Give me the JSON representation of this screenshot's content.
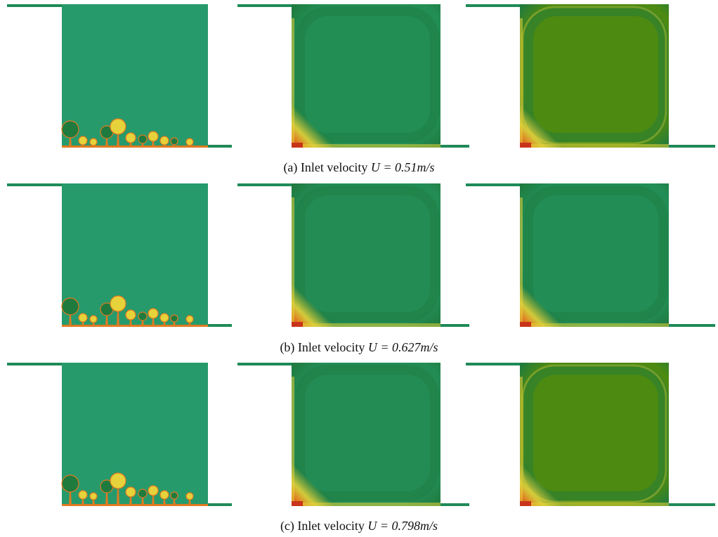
{
  "figure": {
    "rows": [
      {
        "id": "a",
        "caption_prefix": "(a) Inlet velocity ",
        "caption_math": "U = 0.51m/s",
        "panels": [
          {
            "state": "early",
            "tone": "#279a6c"
          },
          {
            "state": "developed",
            "tone": "#228e54"
          },
          {
            "state": "developed-strong",
            "tone": "#4c8a12"
          }
        ]
      },
      {
        "id": "b",
        "caption_prefix": "(b) Inlet velocity ",
        "caption_math": "U = 0.627m/s",
        "panels": [
          {
            "state": "early",
            "tone": "#279a6c"
          },
          {
            "state": "developed",
            "tone": "#238c55"
          },
          {
            "state": "developed",
            "tone": "#228e56"
          }
        ]
      },
      {
        "id": "c",
        "caption_prefix": "(c) Inlet velocity ",
        "caption_math": "U = 0.798m/s",
        "panels": [
          {
            "state": "early",
            "tone": "#279a6c"
          },
          {
            "state": "developed",
            "tone": "#238c55"
          },
          {
            "state": "developed-strong",
            "tone": "#4c8a12"
          }
        ]
      }
    ],
    "colors": {
      "background_field": "#279a6c",
      "cool_edge": "#1f7a3e",
      "warm_yellow": "#e6d23a",
      "warm_orange": "#e07a20",
      "hot_red": "#c8341a",
      "pipe": "#1f8a58"
    }
  }
}
